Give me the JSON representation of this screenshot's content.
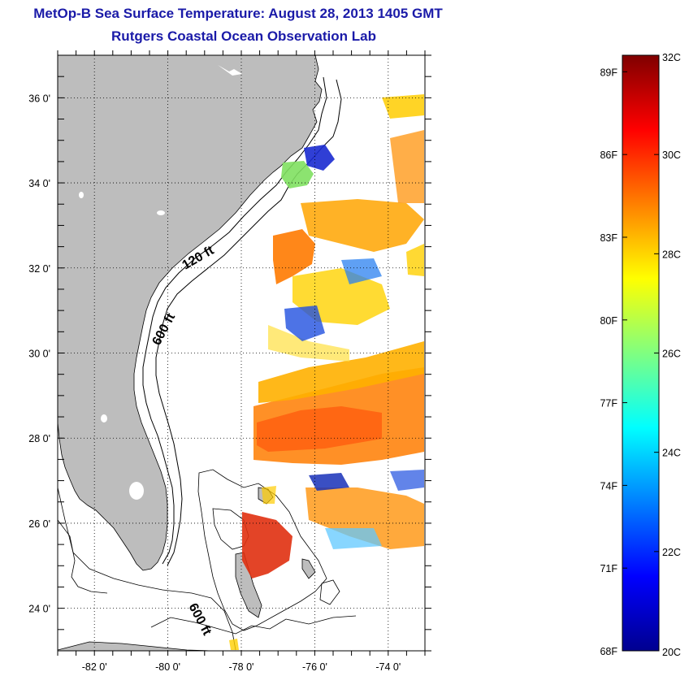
{
  "header": {
    "title": "MetOp-B Sea Surface Temperature:  August 28, 2013 1405 GMT",
    "subtitle": "Rutgers Coastal Ocean Observation Lab"
  },
  "map": {
    "lat_range": [
      23,
      37
    ],
    "lon_range": [
      -83,
      -73
    ],
    "lat_ticks": [
      {
        "value": 36,
        "label": "36 0'"
      },
      {
        "value": 34,
        "label": "34 0'"
      },
      {
        "value": 32,
        "label": "32 0'"
      },
      {
        "value": 30,
        "label": "30 0'"
      },
      {
        "value": 28,
        "label": "28 0'"
      },
      {
        "value": 26,
        "label": "26 0'"
      },
      {
        "value": 24,
        "label": "24 0'"
      }
    ],
    "lon_ticks": [
      {
        "value": -82,
        "label": "-82 0'"
      },
      {
        "value": -80,
        "label": "-80 0'"
      },
      {
        "value": -78,
        "label": "-78 0'"
      },
      {
        "value": -76,
        "label": "-76 0'"
      },
      {
        "value": -74,
        "label": "-74 0'"
      }
    ],
    "grid": "dotted",
    "contour_labels": {
      "c120": "120 ft",
      "c600a": "600 ft",
      "c600b": "600 ft"
    },
    "colors": {
      "land": "#bdbdbd",
      "ocean": "#ffffff",
      "contour": "#000000"
    }
  },
  "colorbar": {
    "range_c": [
      20,
      32
    ],
    "celsius_ticks": [
      {
        "value": 32,
        "label": "32C"
      },
      {
        "value": 30,
        "label": "30C"
      },
      {
        "value": 28,
        "label": "28C"
      },
      {
        "value": 26,
        "label": "26C"
      },
      {
        "value": 24,
        "label": "24C"
      },
      {
        "value": 22,
        "label": "22C"
      },
      {
        "value": 20,
        "label": "20C"
      }
    ],
    "fahrenheit_ticks": [
      {
        "value": 89,
        "label": "89F"
      },
      {
        "value": 86,
        "label": "86F"
      },
      {
        "value": 83,
        "label": "83F"
      },
      {
        "value": 80,
        "label": "80F"
      },
      {
        "value": 77,
        "label": "77F"
      },
      {
        "value": 74,
        "label": "74F"
      },
      {
        "value": 71,
        "label": "71F"
      },
      {
        "value": 68,
        "label": "68F"
      }
    ],
    "colormap": [
      "#00008f",
      "#0000ff",
      "#0080ff",
      "#00ffff",
      "#80ff80",
      "#ffff00",
      "#ff8000",
      "#ff0000",
      "#800000"
    ]
  }
}
